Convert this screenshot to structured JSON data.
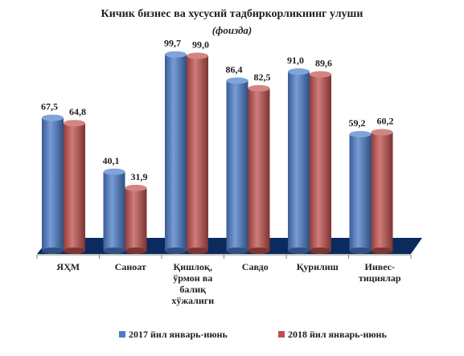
{
  "chart_data": {
    "type": "bar",
    "title": "Кичик бизнес ва хусусий тадбиркорликнинг улуши",
    "subtitle": "(фоизда)",
    "categories": [
      [
        "ЯҲМ"
      ],
      [
        "Саноат"
      ],
      [
        "Қишлоқ,",
        "ўрмон ва",
        "балиқ",
        "хўжалиги"
      ],
      [
        "Савдо"
      ],
      [
        "Қурилиш"
      ],
      [
        "Инвес-",
        "тициялар"
      ]
    ],
    "series": [
      {
        "name": "2017 йил январь-июнь",
        "color": "#4a7bc8",
        "values": [
          67.5,
          40.1,
          99.7,
          86.4,
          91.0,
          59.2
        ],
        "labels": [
          "67,5",
          "40,1",
          "99,7",
          "86,4",
          "91,0",
          "59,2"
        ]
      },
      {
        "name": "2018 йил январь-июнь",
        "color": "#c0504d",
        "values": [
          64.8,
          31.9,
          99.0,
          82.5,
          89.6,
          60.2
        ],
        "labels": [
          "64,8",
          "31,9",
          "99,0",
          "82,5",
          "89,6",
          "60,2"
        ]
      }
    ],
    "floor_color": "#0b2a5e",
    "grid": false,
    "legend_position": "bottom"
  }
}
